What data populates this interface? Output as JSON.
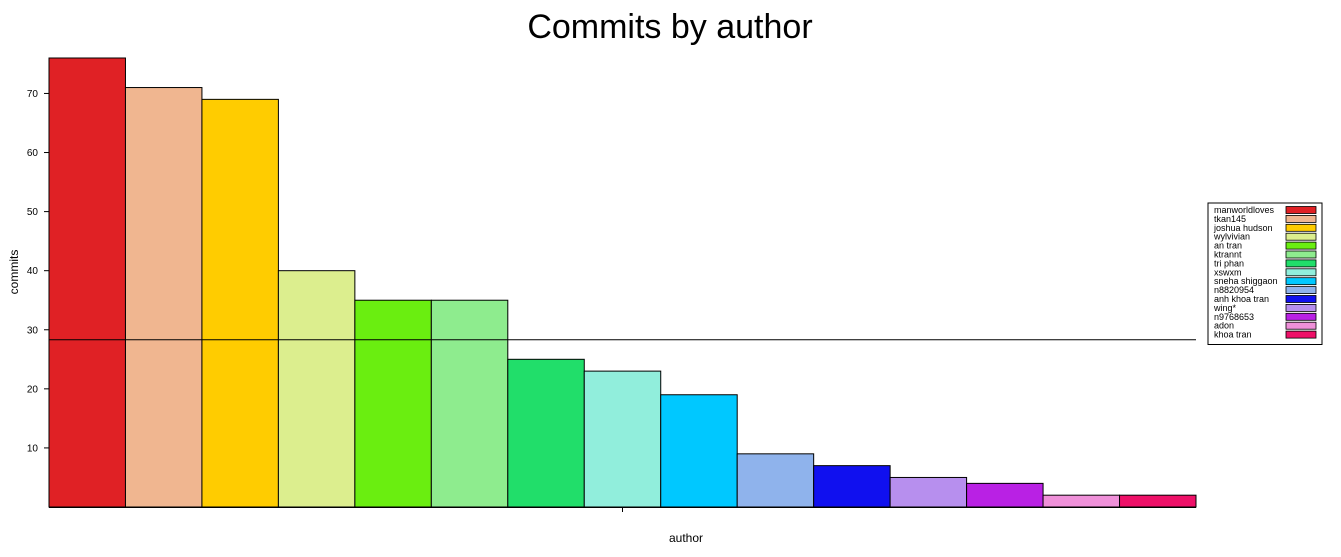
{
  "chart_data": {
    "type": "bar",
    "title": "Commits by author",
    "xlabel": "author",
    "ylabel": "commits",
    "categories": [
      "manworldloves",
      "tkan145",
      "joshua hudson",
      "wylvivian",
      "an tran",
      "ktrannt",
      "tri phan",
      "xswxm",
      "sneha shiggaon",
      "n8820954",
      "anh khoa tran",
      "wing*",
      "n9768653",
      "adon",
      "khoa tran"
    ],
    "values": [
      76,
      71,
      69,
      40,
      35,
      35,
      25,
      23,
      19,
      9,
      7,
      5,
      4,
      2,
      2
    ],
    "colors": [
      "#e02125",
      "#f0b690",
      "#ffcc00",
      "#dcee8e",
      "#6aee10",
      "#8eec8e",
      "#21de6a",
      "#91eedc",
      "#00c8ff",
      "#8fb3ec",
      "#1010ef",
      "#b78fee",
      "#b921e4",
      "#ef90d9",
      "#ee1068"
    ],
    "yticks": [
      10,
      20,
      30,
      40,
      50,
      60,
      70
    ],
    "ylim": [
      0,
      76
    ],
    "reference_line": 28.3,
    "grid": false,
    "legend_position": "right"
  }
}
